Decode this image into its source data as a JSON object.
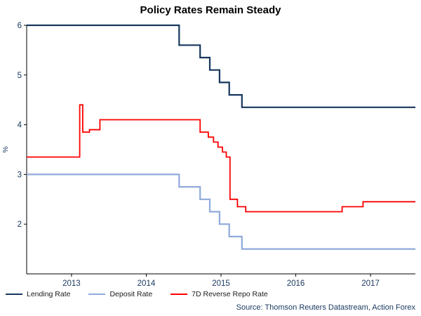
{
  "title": "Policy Rates Remain Steady",
  "footer": {
    "source": "Source: Thomson Reuters Datastream, Action Forex"
  },
  "chart_data": {
    "type": "line",
    "title": "Policy Rates Remain Steady",
    "xlabel": "",
    "ylabel": "%",
    "x_range": [
      2012.4,
      2017.6
    ],
    "y_range": [
      1,
      6
    ],
    "x_ticks": [
      2013,
      2014,
      2015,
      2016,
      2017
    ],
    "y_ticks": [
      2,
      3,
      4,
      5,
      6
    ],
    "grid": false,
    "legend_position": "bottom-left",
    "axis_color": "#000000",
    "tick_label_color": "#17365d",
    "series": [
      {
        "name": "Lending Rate",
        "color": "#17375e",
        "width": 2.2,
        "segments": [
          [
            2012.4,
            2014.44,
            6.0
          ],
          [
            2014.44,
            2014.72,
            5.6
          ],
          [
            2014.72,
            2014.85,
            5.35
          ],
          [
            2014.85,
            2014.98,
            5.1
          ],
          [
            2014.98,
            2015.11,
            4.85
          ],
          [
            2015.11,
            2015.28,
            4.6
          ],
          [
            2015.28,
            2017.6,
            4.35
          ]
        ]
      },
      {
        "name": "Deposit Rate",
        "color": "#8faadc",
        "width": 2.2,
        "segments": [
          [
            2012.4,
            2014.44,
            3.0
          ],
          [
            2014.44,
            2014.72,
            2.75
          ],
          [
            2014.72,
            2014.85,
            2.5
          ],
          [
            2014.85,
            2014.98,
            2.25
          ],
          [
            2014.98,
            2015.11,
            2.0
          ],
          [
            2015.11,
            2015.28,
            1.75
          ],
          [
            2015.28,
            2017.6,
            1.5
          ]
        ]
      },
      {
        "name": "7D Reverse Repo Rate",
        "color": "#fe0000",
        "width": 1.8,
        "segments": [
          [
            2012.4,
            2013.11,
            3.35
          ],
          [
            2013.11,
            2013.15,
            4.4
          ],
          [
            2013.15,
            2013.24,
            3.85
          ],
          [
            2013.24,
            2013.38,
            3.9
          ],
          [
            2013.38,
            2014.72,
            4.1
          ],
          [
            2014.72,
            2014.83,
            3.85
          ],
          [
            2014.83,
            2014.9,
            3.75
          ],
          [
            2014.9,
            2014.96,
            3.65
          ],
          [
            2014.96,
            2015.02,
            3.55
          ],
          [
            2015.02,
            2015.07,
            3.45
          ],
          [
            2015.07,
            2015.12,
            3.35
          ],
          [
            2015.12,
            2015.22,
            2.5
          ],
          [
            2015.22,
            2015.33,
            2.35
          ],
          [
            2015.33,
            2016.62,
            2.25
          ],
          [
            2016.62,
            2016.9,
            2.35
          ],
          [
            2016.9,
            2017.6,
            2.45
          ]
        ]
      }
    ],
    "source": "Source: Thomson Reuters Datastream, Action Forex"
  }
}
